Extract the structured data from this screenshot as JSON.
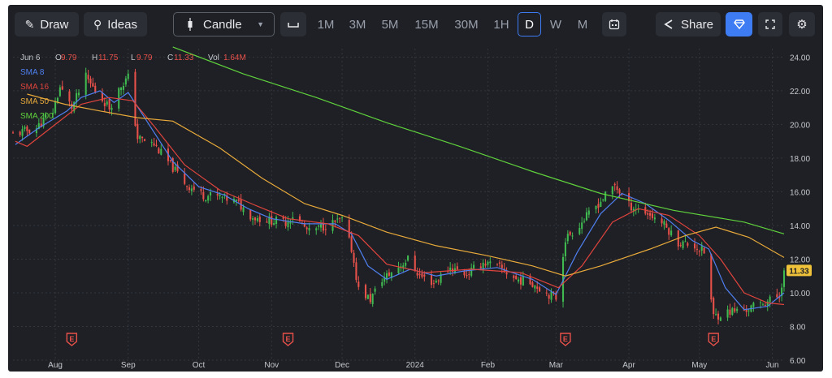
{
  "toolbar": {
    "draw_label": "Draw",
    "ideas_label": "Ideas",
    "chart_type_label": "Candle",
    "timeframes": [
      "1M",
      "3M",
      "5M",
      "15M",
      "30M",
      "1H",
      "D",
      "W",
      "M"
    ],
    "active_timeframe": "D",
    "share_label": "Share"
  },
  "ohlc": {
    "date": "Jun 6",
    "o_label": "O",
    "o_value": "9.79",
    "h_label": "H",
    "h_value": "11.75",
    "l_label": "L",
    "l_value": "9.79",
    "c_label": "C",
    "c_value": "11.33",
    "vol_label": "Vol",
    "vol_value": "1.64M"
  },
  "legend": [
    {
      "label": "SMA 8",
      "color": "#4f7ff0"
    },
    {
      "label": "SMA 16",
      "color": "#e0443d"
    },
    {
      "label": "SMA 50",
      "color": "#e8a93a"
    },
    {
      "label": "SMA 200",
      "color": "#5fd13c"
    }
  ],
  "colors": {
    "up": "#3fb950",
    "down": "#e8514a",
    "price_badge": "#f0c23a"
  },
  "chart_data": {
    "type": "candlestick",
    "x_range": [
      "2023-07-14",
      "2024-06-06"
    ],
    "ylim": [
      6,
      24.5
    ],
    "y_ticks": [
      "24.00",
      "22.00",
      "20.00",
      "18.00",
      "16.00",
      "14.00",
      "12.00",
      "10.00",
      "8.00",
      "6.00"
    ],
    "y_tick_values": [
      24,
      22,
      20,
      18,
      16,
      14,
      12,
      10,
      8,
      6
    ],
    "x_ticks": [
      {
        "label": "Aug",
        "date": "2023-08-01"
      },
      {
        "label": "Sep",
        "date": "2023-09-01"
      },
      {
        "label": "Oct",
        "date": "2023-10-01"
      },
      {
        "label": "Nov",
        "date": "2023-11-01"
      },
      {
        "label": "Dec",
        "date": "2023-12-01"
      },
      {
        "label": "2024",
        "date": "2024-01-01"
      },
      {
        "label": "Feb",
        "date": "2024-02-01"
      },
      {
        "label": "Mar",
        "date": "2024-03-01"
      },
      {
        "label": "Apr",
        "date": "2024-04-01"
      },
      {
        "label": "May",
        "date": "2024-05-01"
      },
      {
        "label": "Jun",
        "date": "2024-06-01"
      }
    ],
    "last_price": "11.33",
    "earnings_marker_label": "E",
    "earnings_dates": [
      "2023-08-08",
      "2023-11-08",
      "2024-03-05",
      "2024-05-07"
    ],
    "close_path": [
      [
        "2023-07-14",
        19.4
      ],
      [
        "2023-07-24",
        19.8
      ],
      [
        "2023-07-31",
        20.8
      ],
      [
        "2023-08-03",
        22.2
      ],
      [
        "2023-08-08",
        21.0
      ],
      [
        "2023-08-14",
        22.8
      ],
      [
        "2023-08-18",
        22.0
      ],
      [
        "2023-08-24",
        21.0
      ],
      [
        "2023-08-29",
        22.3
      ],
      [
        "2023-09-01",
        22.8
      ],
      [
        "2023-09-05",
        19.2
      ],
      [
        "2023-09-12",
        18.8
      ],
      [
        "2023-09-19",
        17.6
      ],
      [
        "2023-09-26",
        16.4
      ],
      [
        "2023-10-03",
        15.8
      ],
      [
        "2023-10-10",
        15.7
      ],
      [
        "2023-10-17",
        15.4
      ],
      [
        "2023-10-24",
        14.5
      ],
      [
        "2023-10-31",
        14.3
      ],
      [
        "2023-11-07",
        14.2
      ],
      [
        "2023-11-10",
        14.6
      ],
      [
        "2023-11-17",
        13.6
      ],
      [
        "2023-11-24",
        14.0
      ],
      [
        "2023-12-01",
        14.3
      ],
      [
        "2023-12-05",
        12.6
      ],
      [
        "2023-12-08",
        10.2
      ],
      [
        "2023-12-13",
        9.6
      ],
      [
        "2023-12-18",
        10.8
      ],
      [
        "2023-12-22",
        11.2
      ],
      [
        "2023-12-29",
        12.0
      ],
      [
        "2024-01-03",
        11.0
      ],
      [
        "2024-01-09",
        10.6
      ],
      [
        "2024-01-16",
        11.5
      ],
      [
        "2024-01-23",
        11.1
      ],
      [
        "2024-01-30",
        11.8
      ],
      [
        "2024-02-06",
        11.5
      ],
      [
        "2024-02-13",
        10.8
      ],
      [
        "2024-02-20",
        10.6
      ],
      [
        "2024-02-26",
        10.0
      ],
      [
        "2024-03-01",
        9.7
      ],
      [
        "2024-03-05",
        13.2
      ],
      [
        "2024-03-12",
        14.2
      ],
      [
        "2024-03-19",
        15.3
      ],
      [
        "2024-03-26",
        16.4
      ],
      [
        "2024-04-01",
        15.2
      ],
      [
        "2024-04-08",
        14.8
      ],
      [
        "2024-04-15",
        14.2
      ],
      [
        "2024-04-22",
        13.0
      ],
      [
        "2024-04-29",
        12.8
      ],
      [
        "2024-05-03",
        12.4
      ],
      [
        "2024-05-07",
        8.6
      ],
      [
        "2024-05-14",
        8.9
      ],
      [
        "2024-05-21",
        9.0
      ],
      [
        "2024-05-28",
        9.4
      ],
      [
        "2024-06-04",
        9.8
      ],
      [
        "2024-06-06",
        11.33
      ]
    ],
    "series": [
      {
        "name": "SMA 8",
        "points": [
          [
            "2023-07-15",
            18.8
          ],
          [
            "2023-07-25",
            19.8
          ],
          [
            "2023-08-06",
            20.8
          ],
          [
            "2023-08-12",
            21.6
          ],
          [
            "2023-08-20",
            22.0
          ],
          [
            "2023-08-26",
            21.3
          ],
          [
            "2023-09-01",
            21.9
          ],
          [
            "2023-09-08",
            20.4
          ],
          [
            "2023-09-20",
            17.8
          ],
          [
            "2023-10-01",
            16.3
          ],
          [
            "2023-10-12",
            15.8
          ],
          [
            "2023-10-22",
            15.0
          ],
          [
            "2023-11-01",
            14.4
          ],
          [
            "2023-11-15",
            14.1
          ],
          [
            "2023-11-28",
            14.1
          ],
          [
            "2023-12-05",
            13.5
          ],
          [
            "2023-12-12",
            11.6
          ],
          [
            "2023-12-20",
            10.8
          ],
          [
            "2023-12-30",
            11.4
          ],
          [
            "2024-01-10",
            11.0
          ],
          [
            "2024-01-22",
            11.3
          ],
          [
            "2024-02-05",
            11.5
          ],
          [
            "2024-02-20",
            10.8
          ],
          [
            "2024-03-01",
            9.9
          ],
          [
            "2024-03-10",
            12.4
          ],
          [
            "2024-03-20",
            14.7
          ],
          [
            "2024-03-29",
            15.9
          ],
          [
            "2024-04-08",
            15.3
          ],
          [
            "2024-04-18",
            14.3
          ],
          [
            "2024-04-28",
            13.1
          ],
          [
            "2024-05-05",
            12.6
          ],
          [
            "2024-05-12",
            10.3
          ],
          [
            "2024-05-20",
            9.0
          ],
          [
            "2024-05-30",
            9.2
          ],
          [
            "2024-06-06",
            10.0
          ]
        ]
      },
      {
        "name": "SMA 16",
        "points": [
          [
            "2023-07-15",
            19.0
          ],
          [
            "2023-07-20",
            18.7
          ],
          [
            "2023-08-01",
            20.0
          ],
          [
            "2023-08-12",
            21.2
          ],
          [
            "2023-08-24",
            21.6
          ],
          [
            "2023-09-03",
            21.4
          ],
          [
            "2023-09-12",
            19.9
          ],
          [
            "2023-09-25",
            17.6
          ],
          [
            "2023-10-10",
            16.1
          ],
          [
            "2023-10-25",
            15.2
          ],
          [
            "2023-11-08",
            14.4
          ],
          [
            "2023-11-25",
            14.1
          ],
          [
            "2023-12-08",
            13.4
          ],
          [
            "2023-12-20",
            11.7
          ],
          [
            "2024-01-05",
            11.2
          ],
          [
            "2024-01-25",
            11.4
          ],
          [
            "2024-02-15",
            11.2
          ],
          [
            "2024-03-02",
            10.3
          ],
          [
            "2024-03-12",
            11.6
          ],
          [
            "2024-03-25",
            14.2
          ],
          [
            "2024-04-05",
            15.0
          ],
          [
            "2024-04-18",
            14.6
          ],
          [
            "2024-05-01",
            13.4
          ],
          [
            "2024-05-10",
            12.0
          ],
          [
            "2024-05-20",
            10.0
          ],
          [
            "2024-05-30",
            9.4
          ],
          [
            "2024-06-06",
            9.3
          ]
        ]
      },
      {
        "name": "SMA 50",
        "points": [
          [
            "2023-07-20",
            21.8
          ],
          [
            "2023-08-05",
            21.2
          ],
          [
            "2023-08-20",
            20.8
          ],
          [
            "2023-09-05",
            20.4
          ],
          [
            "2023-09-20",
            20.2
          ],
          [
            "2023-10-10",
            18.6
          ],
          [
            "2023-10-28",
            16.8
          ],
          [
            "2023-11-15",
            15.3
          ],
          [
            "2023-12-01",
            14.6
          ],
          [
            "2023-12-20",
            13.6
          ],
          [
            "2024-01-10",
            12.8
          ],
          [
            "2024-02-01",
            12.2
          ],
          [
            "2024-02-20",
            11.6
          ],
          [
            "2024-03-05",
            11.0
          ],
          [
            "2024-03-20",
            11.6
          ],
          [
            "2024-04-10",
            12.6
          ],
          [
            "2024-04-25",
            13.4
          ],
          [
            "2024-05-08",
            13.9
          ],
          [
            "2024-05-22",
            13.3
          ],
          [
            "2024-06-06",
            12.1
          ]
        ]
      },
      {
        "name": "SMA 200",
        "points": [
          [
            "2023-09-20",
            24.6
          ],
          [
            "2023-10-20",
            23.0
          ],
          [
            "2023-11-20",
            21.6
          ],
          [
            "2023-12-20",
            20.1
          ],
          [
            "2024-01-20",
            18.7
          ],
          [
            "2024-02-20",
            17.2
          ],
          [
            "2024-03-20",
            15.9
          ],
          [
            "2024-04-20",
            14.9
          ],
          [
            "2024-05-20",
            14.2
          ],
          [
            "2024-06-06",
            13.5
          ]
        ]
      }
    ]
  }
}
